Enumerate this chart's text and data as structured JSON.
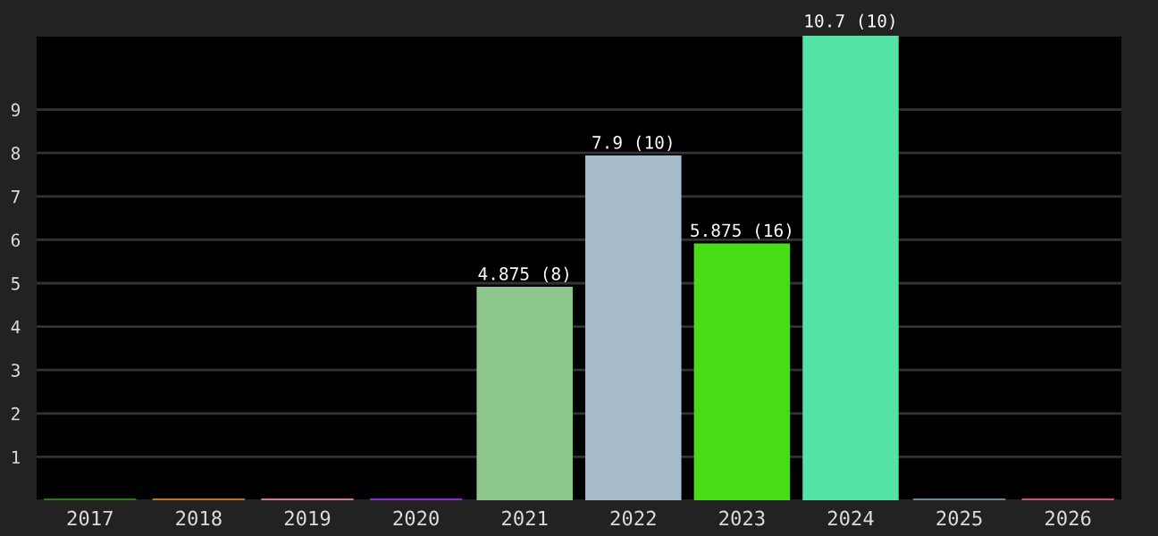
{
  "chart_data": {
    "type": "bar",
    "categories": [
      "2017",
      "2018",
      "2019",
      "2020",
      "2021",
      "2022",
      "2023",
      "2024",
      "2025",
      "2026"
    ],
    "values": [
      0,
      0,
      0,
      0,
      4.875,
      7.9,
      5.875,
      10.7,
      0,
      0
    ],
    "colors": [
      "#2a7a1a",
      "#b8761a",
      "#d07a9a",
      "#8a2ad0",
      "#8dc68a",
      "#a6bcca",
      "#46dc16",
      "#52e3a5",
      "#6a8a9a",
      "#d04a7a"
    ],
    "value_labels": [
      null,
      null,
      null,
      null,
      "4.875 (8)",
      "7.9 (10)",
      "5.875 (16)",
      "10.7 (10)",
      null,
      null
    ],
    "ylim": [
      0,
      10.7
    ],
    "yticks": [
      1,
      2,
      3,
      4,
      5,
      6,
      7,
      8,
      9
    ],
    "grid": "y",
    "legend": false
  }
}
